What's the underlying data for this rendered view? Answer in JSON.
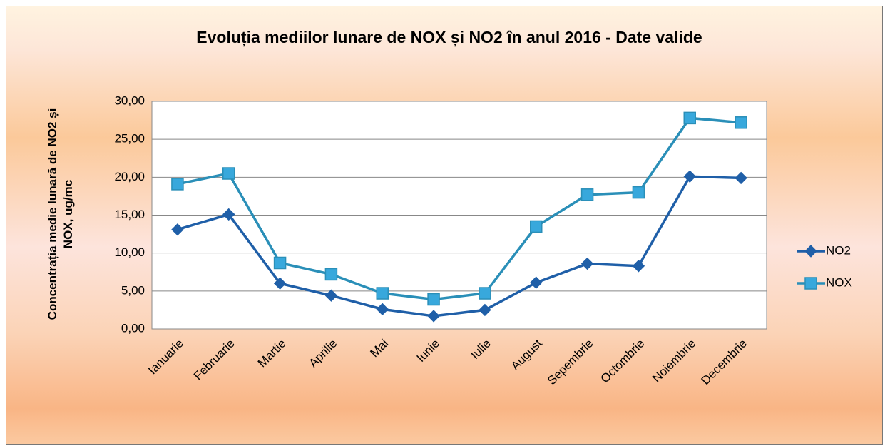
{
  "chart_data": {
    "type": "line",
    "title": "Evoluția mediilor lunare de NOX și NO2 în anul 2016 - Date valide",
    "y_label": "Concentrația medie lunară de NO2 și NOX, ug/mc",
    "categories": [
      "Ianuarie",
      "Februarie",
      "Martie",
      "Aprilie",
      "Mai",
      "Iunie",
      "Iulie",
      "August",
      "Sepembrie",
      "Octombrie",
      "Noiembrie",
      "Decembrie"
    ],
    "series": [
      {
        "name": "NO2",
        "color": "#1f5fa8",
        "marker": "diamond",
        "values": [
          13.1,
          15.1,
          6.0,
          4.4,
          2.6,
          1.7,
          2.5,
          6.1,
          8.6,
          8.3,
          20.1,
          19.9
        ]
      },
      {
        "name": "NOX",
        "color": "#2a8fb8",
        "marker": "square",
        "values": [
          19.1,
          20.5,
          8.7,
          7.2,
          4.7,
          3.9,
          4.7,
          13.5,
          17.7,
          18.0,
          27.8,
          27.2
        ]
      }
    ],
    "ylim": [
      0,
      30
    ],
    "yticks": [
      {
        "value": 0,
        "label": "0,00"
      },
      {
        "value": 5,
        "label": "5,00"
      },
      {
        "value": 10,
        "label": "10,00"
      },
      {
        "value": 15,
        "label": "15,00"
      },
      {
        "value": 20,
        "label": "20,00"
      },
      {
        "value": 25,
        "label": "25,00"
      },
      {
        "value": 30,
        "label": "30,00"
      }
    ],
    "grid": true,
    "legend": "right"
  }
}
